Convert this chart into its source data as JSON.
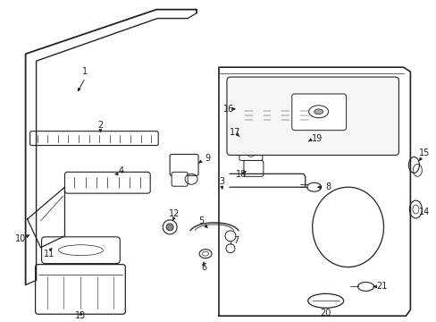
{
  "bg_color": "#ffffff",
  "line_color": "#222222",
  "figsize": [
    4.89,
    3.6
  ],
  "dpi": 100
}
